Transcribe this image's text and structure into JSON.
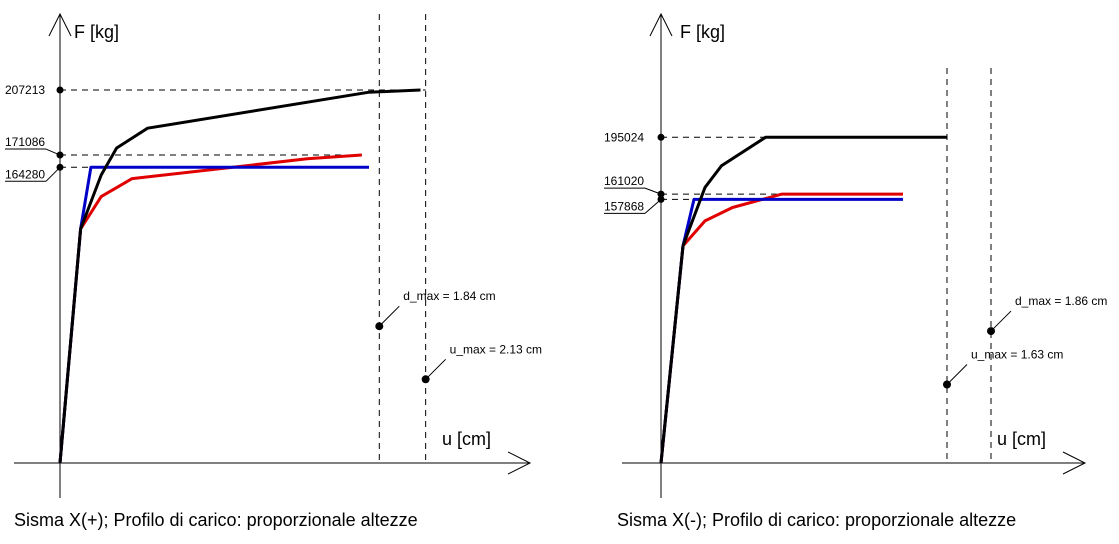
{
  "chart_data": [
    {
      "type": "line",
      "title": "Sisma X(+); Profilo di carico: proporzionale altezze",
      "xlabel": "u [cm]",
      "ylabel": "F [kg]",
      "colors": {
        "black": "#000000",
        "blue": "#0000c8",
        "red": "#e00000"
      },
      "y_ticks": [
        {
          "value": 207213,
          "label": "207213",
          "underlined": false
        },
        {
          "value": 171086,
          "label": "171086",
          "underlined": true
        },
        {
          "value": 164280,
          "label": "164280",
          "underlined": true
        }
      ],
      "xlim": [
        0,
        4.9
      ],
      "ylim": [
        0,
        245000
      ],
      "series": [
        {
          "color": "#000000",
          "x": [
            0,
            0.2,
            0.4,
            0.55,
            0.85,
            3.0,
            3.5
          ],
          "y": [
            0,
            130000,
            160000,
            175000,
            186000,
            206000,
            207213
          ]
        },
        {
          "color": "#0000c8",
          "x": [
            0,
            0.2,
            0.3,
            3.0
          ],
          "y": [
            0,
            130000,
            164280,
            164280
          ]
        },
        {
          "color": "#e00000",
          "x": [
            0,
            0.2,
            0.4,
            0.7,
            2.4,
            2.93
          ],
          "y": [
            0,
            130000,
            148000,
            158000,
            169000,
            171086
          ]
        }
      ],
      "annotations": [
        {
          "label": "d_max = 1.84 cm",
          "x": 3.1,
          "y": 76000
        },
        {
          "label": "u_max = 2.13 cm",
          "x": 3.55,
          "y": 46500
        }
      ],
      "vertical_lines": [
        3.1,
        3.55
      ]
    },
    {
      "type": "line",
      "title": "Sisma X(-); Profilo di carico: proporzionale altezze",
      "xlabel": "u [cm]",
      "ylabel": "F [kg]",
      "colors": {
        "black": "#000000",
        "blue": "#0000c8",
        "red": "#e00000"
      },
      "y_ticks": [
        {
          "value": 195024,
          "label": "195024",
          "underlined": false
        },
        {
          "value": 161020,
          "label": "161020",
          "underlined": true
        },
        {
          "value": 157868,
          "label": "157868",
          "underlined": true
        }
      ],
      "xlim": [
        0,
        4.9
      ],
      "ylim": [
        0,
        245000
      ],
      "series": [
        {
          "color": "#000000",
          "x": [
            0,
            0.2,
            0.4,
            0.55,
            0.95,
            2.6
          ],
          "y": [
            0,
            130000,
            165000,
            178000,
            195024,
            195024
          ]
        },
        {
          "color": "#0000c8",
          "x": [
            0,
            0.2,
            0.3,
            2.2
          ],
          "y": [
            0,
            130000,
            157868,
            157868
          ]
        },
        {
          "color": "#e00000",
          "x": [
            0,
            0.2,
            0.4,
            0.65,
            1.1,
            2.2
          ],
          "y": [
            0,
            130000,
            145000,
            153000,
            161020,
            161020
          ]
        }
      ],
      "annotations": [
        {
          "label": "d_max = 1.86 cm",
          "x": 3.0,
          "y": 79000
        },
        {
          "label": "u_max = 1.63 cm",
          "x": 2.6,
          "y": 47000
        }
      ],
      "vertical_lines": [
        2.6,
        3.0
      ]
    }
  ]
}
